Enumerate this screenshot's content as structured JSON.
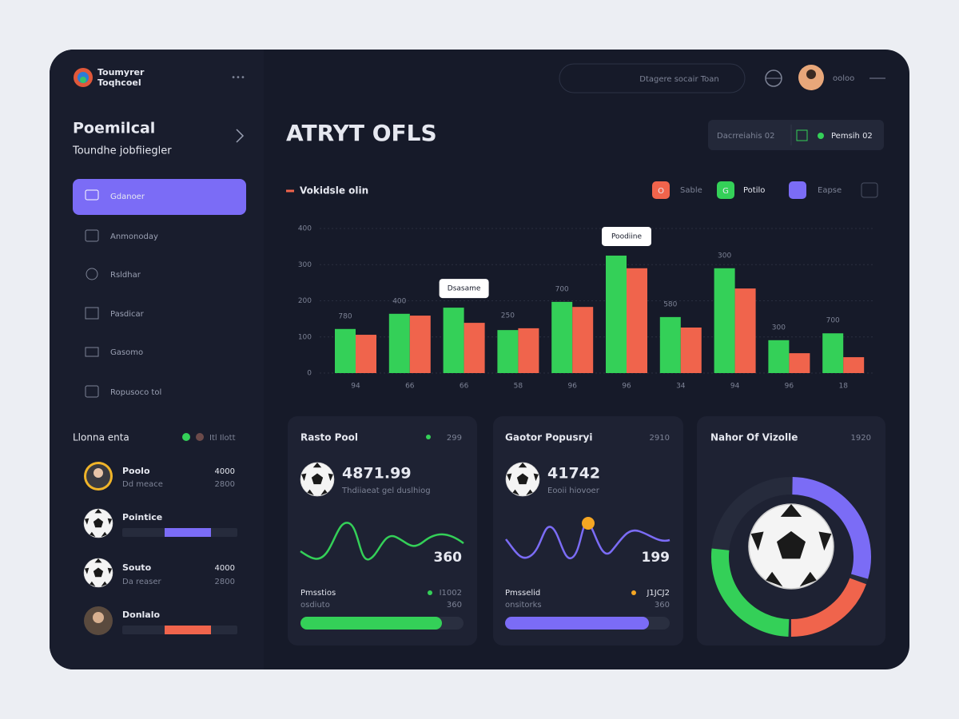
{
  "brand": {
    "line1": "Toumyrer",
    "line2": "Toqhcoel",
    "menu": "•••"
  },
  "topbar": {
    "search": "Dtagere socair Toan",
    "user": "ooloo"
  },
  "sidebar": {
    "heading": "Poemilcal",
    "subheading": "Toundhe jobfiiegler",
    "nav": [
      "Gdanoer",
      "Anmonoday",
      "Rsldhar",
      "Pasdicar",
      "Gasomo",
      "Ropusoco tol"
    ]
  },
  "leaders": {
    "title": "Llonna enta",
    "status": "Itl Ilott",
    "players": [
      {
        "name": "Poolo",
        "sub": "Dd meace",
        "score": "4000",
        "score2": "2800"
      },
      {
        "name": "Pointice"
      },
      {
        "name": "Souto",
        "sub": "Da reaser",
        "score": "4000",
        "score2": "2800"
      },
      {
        "name": "Donlalo"
      }
    ]
  },
  "header": {
    "title": "ATRYT OFLS",
    "control1": "Dacrreiahis 02",
    "control2": "Pemsih 02"
  },
  "chart_data": {
    "type": "bar",
    "title": "Vokidsle olin",
    "badges": [
      "O",
      "G"
    ],
    "extra_filter": "Eapse",
    "categories": [
      "94",
      "66",
      "66",
      "58",
      "96",
      "96",
      "34",
      "94",
      "96",
      "18"
    ],
    "series": [
      {
        "name": "Potilo",
        "color": "#34d058",
        "values": [
          122,
          164,
          181,
          119,
          197,
          325,
          155,
          290,
          91,
          110
        ]
      },
      {
        "name": "Sable",
        "color": "#f0644c",
        "values": [
          106,
          159,
          139,
          124,
          183,
          290,
          126,
          234,
          55,
          44
        ]
      }
    ],
    "annotations": [
      "780",
      "400",
      null,
      "250",
      "700",
      null,
      "580",
      "300",
      "300",
      "700"
    ],
    "tooltips": [
      null,
      null,
      "Dsasame",
      null,
      null,
      "Poodiine",
      null,
      null,
      null,
      null
    ],
    "ylim": [
      0,
      400
    ],
    "yticks": [
      0,
      100,
      200,
      300,
      400
    ],
    "grid": true
  },
  "cards": [
    {
      "title": "Rasto Pool",
      "meta": "299",
      "value": "4871.99",
      "sub": "Thdiiaeat gel duslhiog",
      "figure": "360",
      "foot_label": "Pmsstios",
      "foot_sub": "osdiuto",
      "foot_right": "I1002",
      "foot_right2": "360"
    },
    {
      "title": "Gaotor Popusryi",
      "meta": "2910",
      "value": "41742",
      "sub": "Eooii hiovoer",
      "figure": "199",
      "foot_label": "Pmsselid",
      "foot_sub": "onsitorks",
      "foot_right": "J1JCJ2",
      "foot_right2": "360"
    },
    {
      "title": "Nahor Of Vizolle",
      "meta": "1920"
    }
  ]
}
